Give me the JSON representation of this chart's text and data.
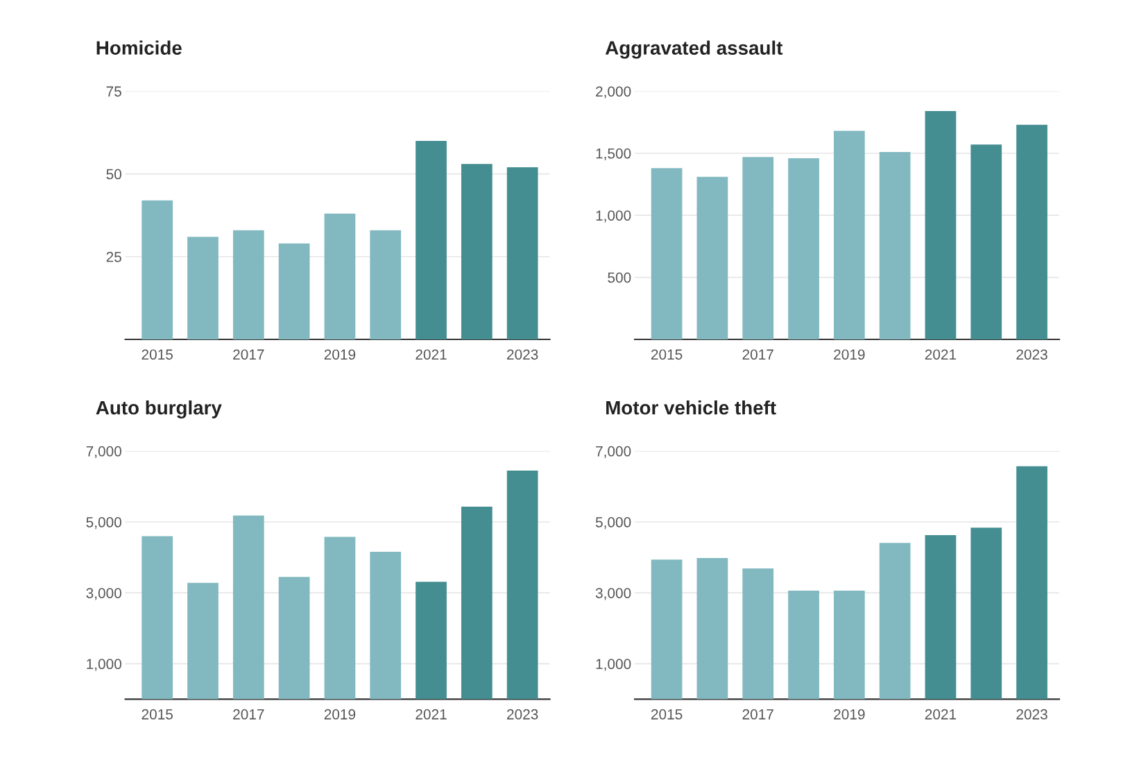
{
  "chart_data": [
    {
      "type": "bar",
      "title": "Homicide",
      "categories": [
        "2015",
        null,
        "2017",
        null,
        "2019",
        null,
        "2021",
        null,
        "2023"
      ],
      "values": [
        42,
        31,
        33,
        29,
        38,
        33,
        60,
        53,
        52
      ],
      "colors": [
        "#82b9c0",
        "#82b9c0",
        "#82b9c0",
        "#82b9c0",
        "#82b9c0",
        "#82b9c0",
        "#448e92",
        "#448e92",
        "#448e92"
      ],
      "ylim": [
        0,
        75
      ],
      "yticks": [
        25,
        50,
        75
      ],
      "grid": "y"
    },
    {
      "type": "bar",
      "title": "Aggravated assault",
      "categories": [
        "2015",
        null,
        "2017",
        null,
        "2019",
        null,
        "2021",
        null,
        "2023"
      ],
      "values": [
        1380,
        1310,
        1470,
        1460,
        1680,
        1510,
        1840,
        1570,
        1730
      ],
      "colors": [
        "#82b9c0",
        "#82b9c0",
        "#82b9c0",
        "#82b9c0",
        "#82b9c0",
        "#82b9c0",
        "#448e92",
        "#448e92",
        "#448e92"
      ],
      "ylim": [
        0,
        2000
      ],
      "yticks": [
        {
          "value": 500,
          "label": "500"
        },
        {
          "value": 1000,
          "label": "1,000"
        },
        {
          "value": 1500,
          "label": "1,500"
        },
        {
          "value": 2000,
          "label": "2,000"
        }
      ],
      "grid": "y"
    },
    {
      "type": "bar",
      "title": "Auto burglary",
      "categories": [
        "2015",
        null,
        "2017",
        null,
        "2019",
        null,
        "2021",
        null,
        "2023"
      ],
      "values": [
        4600,
        3280,
        5180,
        3450,
        4580,
        4160,
        3310,
        5430,
        6450
      ],
      "colors": [
        "#82b9c0",
        "#82b9c0",
        "#82b9c0",
        "#82b9c0",
        "#82b9c0",
        "#82b9c0",
        "#448e92",
        "#448e92",
        "#448e92"
      ],
      "ylim": [
        0,
        7000
      ],
      "yticks": [
        {
          "value": 1000,
          "label": "1,000"
        },
        {
          "value": 3000,
          "label": "3,000"
        },
        {
          "value": 5000,
          "label": "5,000"
        },
        {
          "value": 7000,
          "label": "7,000"
        }
      ],
      "grid": "y"
    },
    {
      "type": "bar",
      "title": "Motor vehicle theft",
      "categories": [
        "2015",
        null,
        "2017",
        null,
        "2019",
        null,
        "2021",
        null,
        "2023"
      ],
      "values": [
        3940,
        3980,
        3690,
        3060,
        3060,
        4410,
        4630,
        4840,
        6570
      ],
      "colors": [
        "#82b9c0",
        "#82b9c0",
        "#82b9c0",
        "#82b9c0",
        "#82b9c0",
        "#82b9c0",
        "#448e92",
        "#448e92",
        "#448e92"
      ],
      "ylim": [
        0,
        7000
      ],
      "yticks": [
        {
          "value": 1000,
          "label": "1,000"
        },
        {
          "value": 3000,
          "label": "3,000"
        },
        {
          "value": 5000,
          "label": "5,000"
        },
        {
          "value": 7000,
          "label": "7,000"
        }
      ],
      "grid": "y"
    }
  ]
}
